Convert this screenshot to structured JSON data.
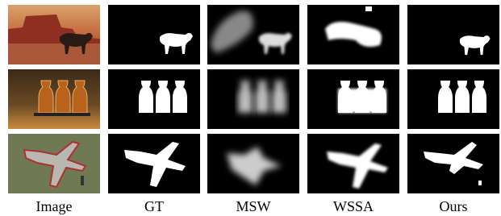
{
  "columns": [
    "Image",
    "GT",
    "MSW",
    "WSSA",
    "Ours"
  ]
}
